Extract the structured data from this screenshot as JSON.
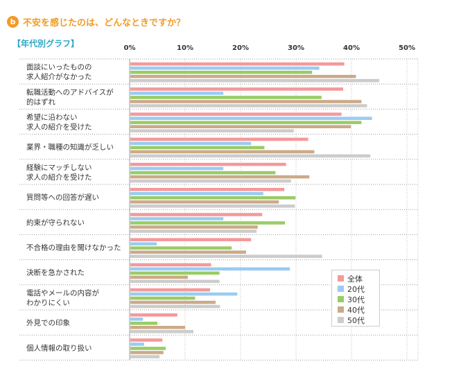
{
  "header": {
    "badge": "b",
    "title": "不安を感じたのは、どんなときですか？"
  },
  "subtitle": "【年代別グラフ】",
  "chart_data": {
    "type": "bar",
    "orientation": "horizontal",
    "xlim": [
      0,
      52
    ],
    "ticks": [
      0,
      10,
      20,
      30,
      40,
      50
    ],
    "tick_labels": [
      "0%",
      "10%",
      "20%",
      "30%",
      "40%",
      "50%"
    ],
    "grid": true,
    "legend_position": "bottom-right",
    "categories": [
      [
        "面談にいったものの",
        "求人紹介がなかった"
      ],
      [
        "転職活動へのアドバイスが",
        "的はずれ"
      ],
      [
        "希望に沿わない",
        "求人の紹介を受けた"
      ],
      [
        "業界・職種の知識が乏しい"
      ],
      [
        "経験にマッチしない",
        "求人の紹介を受けた"
      ],
      [
        "質問等への回答が遅い"
      ],
      [
        "約束が守られない"
      ],
      [
        "不合格の理由を聞けなかった"
      ],
      [
        "決断を急かされた"
      ],
      [
        "電話やメールの内容が",
        "わかりにくい"
      ],
      [
        "外見での印象"
      ],
      [
        "個人情報の取り扱い"
      ]
    ],
    "series": [
      {
        "name": "全体",
        "color": "#f4999a",
        "values": [
          38.7,
          38.5,
          38.2,
          32.2,
          28.2,
          27.9,
          23.9,
          21.9,
          14.7,
          14.5,
          8.6,
          5.9
        ]
      },
      {
        "name": "20代",
        "color": "#99ccf1",
        "values": [
          34.2,
          16.9,
          43.7,
          21.9,
          16.9,
          24.1,
          16.9,
          4.9,
          28.9,
          19.4,
          2.4,
          2.6
        ]
      },
      {
        "name": "30代",
        "color": "#99cc66",
        "values": [
          32.9,
          34.6,
          41.8,
          24.3,
          26.3,
          29.9,
          28.0,
          18.4,
          16.2,
          11.8,
          5.0,
          6.5
        ]
      },
      {
        "name": "40代",
        "color": "#ccaa88",
        "values": [
          40.8,
          41.8,
          39.9,
          33.3,
          32.4,
          26.9,
          23.1,
          21.0,
          10.5,
          15.5,
          10.0,
          6.1
        ]
      },
      {
        "name": "50代",
        "color": "#cccccc",
        "values": [
          45.0,
          42.8,
          29.6,
          43.4,
          29.1,
          29.8,
          22.9,
          34.7,
          16.2,
          16.3,
          11.5,
          5.4
        ]
      }
    ]
  }
}
